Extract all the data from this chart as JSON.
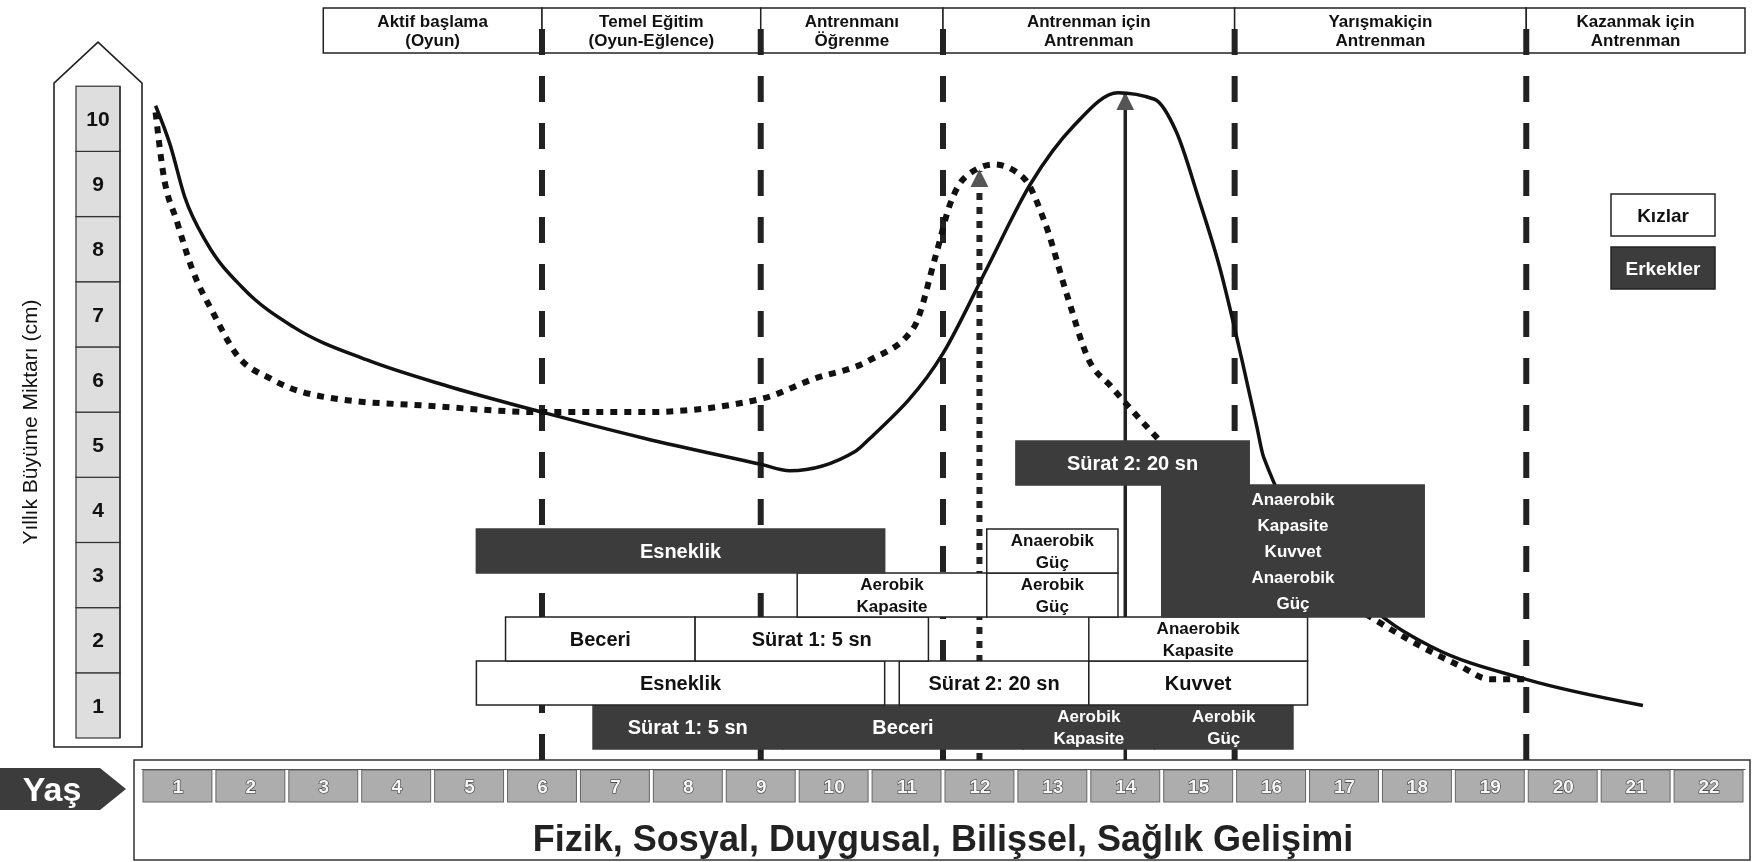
{
  "chart_data": {
    "type": "line",
    "xlabel": "Yaş",
    "ylabel": "Yıllık Büyüme Miktarı (cm)",
    "annotations": [
      "Fizik, Sosyal, Duygusal, Bilişsel, Sağlık Gelişimi",
      "Kızlar",
      "Erkekler"
    ],
    "xlim": [
      0.5,
      22.5
    ],
    "xticks": [
      1,
      2,
      3,
      4,
      5,
      6,
      7,
      8,
      9,
      10,
      11,
      12,
      13,
      14,
      15,
      16,
      17,
      18,
      19,
      20,
      21,
      22
    ],
    "ylim": [
      0.5,
      11.7
    ],
    "yticks": [
      1,
      2,
      3,
      4,
      5,
      6,
      7,
      8,
      9,
      10
    ],
    "series": [
      {
        "color": "#111111",
        "line_style": "dotted",
        "x": [
          0.7,
          0.8,
          1.0,
          1.2,
          1.5,
          1.8,
          2.3,
          3.2,
          4.4,
          6.0,
          7.4,
          9.0,
          9.7,
          10.5,
          11.1,
          11.4,
          11.6,
          11.8,
          12.2,
          12.6,
          12.9,
          13.2,
          13.5,
          13.8,
          17.9,
          18.6,
          19.0,
          19.5
        ],
        "values": [
          10.1,
          9.2,
          8.4,
          7.7,
          7.0,
          6.4,
          6.0,
          5.7,
          5.6,
          5.5,
          5.5,
          5.7,
          6.0,
          6.3,
          6.8,
          7.9,
          8.7,
          9.1,
          9.3,
          9.1,
          8.4,
          7.3,
          6.3,
          5.9,
          2.0,
          1.6,
          1.4,
          1.4
        ]
      },
      {
        "color": "#111111",
        "line_style": "solid",
        "x": [
          0.7,
          0.9,
          1.1,
          1.4,
          1.9,
          2.6,
          3.6,
          4.7,
          6.0,
          7.4,
          9.0,
          9.4,
          10.3,
          10.5,
          11.5,
          12.1,
          12.7,
          13.3,
          13.9,
          14.4,
          14.7,
          15.0,
          15.3,
          15.6,
          15.8,
          15.9,
          17.6,
          18.2,
          19.5,
          21.1
        ],
        "values": [
          10.2,
          9.6,
          8.8,
          8.1,
          7.4,
          6.8,
          6.3,
          5.9,
          5.5,
          5.1,
          4.7,
          4.6,
          4.9,
          5.1,
          6.4,
          7.7,
          9.0,
          9.9,
          10.4,
          10.3,
          9.8,
          8.8,
          7.7,
          6.3,
          5.3,
          4.8,
          2.3,
          1.9,
          1.4,
          1.0
        ]
      }
    ],
    "ref_lines": [
      {
        "axis": "x",
        "value": 6,
        "line_style": "dashed"
      },
      {
        "axis": "x",
        "value": 9,
        "line_style": "dashed"
      },
      {
        "axis": "x",
        "value": 11.5,
        "line_style": "dashed"
      },
      {
        "axis": "x",
        "value": 15.5,
        "line_style": "dashed"
      },
      {
        "axis": "x",
        "value": 19.5,
        "line_style": "dashed"
      },
      {
        "axis": "x",
        "value": 12,
        "line_style": "dotted"
      },
      {
        "axis": "x",
        "value": 14,
        "line_style": "solid"
      }
    ],
    "bands": [
      {
        "axis": "x",
        "from": 3,
        "to": 6,
        "label": "Aktif başlama\n(Oyun)",
        "color": "#ffffff"
      },
      {
        "axis": "x",
        "from": 6,
        "to": 9,
        "label": "Temel Eğitim\n(Oyun-Eğlence)",
        "color": "#ffffff"
      },
      {
        "axis": "x",
        "from": 9,
        "to": 11.5,
        "label": "Antrenmanı\nÖğrenme",
        "color": "#ffffff"
      },
      {
        "axis": "x",
        "from": 11.5,
        "to": 15.5,
        "label": "Antrenman için\nAntrenman",
        "color": "#ffffff"
      },
      {
        "axis": "x",
        "from": 15.5,
        "to": 19.5,
        "label": "Yarışmakiçin\nAntrenman",
        "color": "#ffffff"
      },
      {
        "axis": "x",
        "from": 19.5,
        "to": 22.5,
        "label": "Kazanmak için\nAntrenman",
        "color": "#ffffff"
      },
      {
        "axis": "x",
        "from": 6.7,
        "to": 9.3,
        "label": "Sürat 1: 5 sn",
        "color": "#3c3c3c"
      },
      {
        "axis": "x",
        "from": 9.3,
        "to": 12.6,
        "label": "Beceri",
        "color": "#3c3c3c"
      },
      {
        "axis": "x",
        "from": 12.6,
        "to": 14.4,
        "label": "Aerobik\nKapasite",
        "color": "#3c3c3c"
      },
      {
        "axis": "x",
        "from": 14.4,
        "to": 16.3,
        "label": "Aerobik\nGüç",
        "color": "#3c3c3c"
      },
      {
        "axis": "x",
        "from": 5.1,
        "to": 10.7,
        "label": "Esneklik",
        "color": "#ffffff"
      },
      {
        "axis": "x",
        "from": 10.9,
        "to": 13.5,
        "label": "Sürat 2: 20 sn",
        "color": "#ffffff"
      },
      {
        "axis": "x",
        "from": 13.5,
        "to": 16.5,
        "label": "Kuvvet",
        "color": "#ffffff"
      },
      {
        "axis": "x",
        "from": 5.5,
        "to": 8.1,
        "label": "Beceri",
        "color": "#ffffff"
      },
      {
        "axis": "x",
        "from": 8.1,
        "to": 11.3,
        "label": "Sürat 1: 5 sn",
        "color": "#ffffff"
      },
      {
        "axis": "x",
        "from": 13.5,
        "to": 16.5,
        "label": "Anaerobik\nKapasite",
        "color": "#ffffff"
      },
      {
        "axis": "x",
        "from": 9.5,
        "to": 12.1,
        "label": "Aerobik\nKapasite",
        "color": "#ffffff"
      },
      {
        "axis": "x",
        "from": 12.1,
        "to": 13.9,
        "label": "Aerobik\nGüç",
        "color": "#ffffff"
      },
      {
        "axis": "x",
        "from": 14.5,
        "to": 18.1,
        "label": "Anaerobik\nKapasite\nKuvvet\nAnaerobik\nGüç",
        "color": "#3c3c3c"
      },
      {
        "axis": "x",
        "from": 5.1,
        "to": 10.7,
        "label": "Esneklik",
        "color": "#3c3c3c"
      },
      {
        "axis": "x",
        "from": 12.1,
        "to": 13.9,
        "label": "Anaerobik\nGüç",
        "color": "#ffffff"
      },
      {
        "axis": "x",
        "from": 12.5,
        "to": 15.7,
        "label": "Sürat 2: 20 sn",
        "color": "#3c3c3c"
      }
    ]
  }
}
